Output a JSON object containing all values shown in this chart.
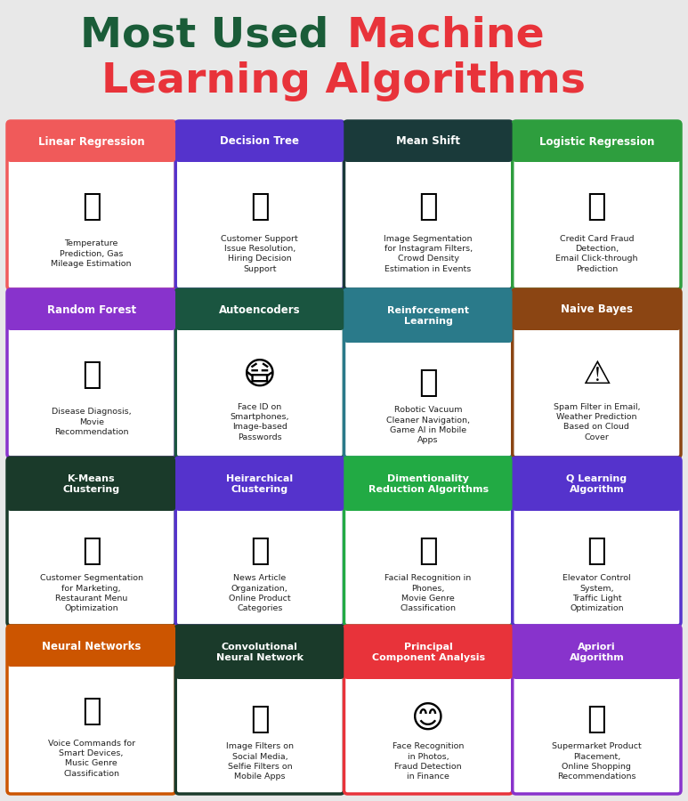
{
  "background_color": "#e8e8e8",
  "title_line1_part1": "Most Used ",
  "title_line1_part2": "Machine",
  "title_line2": "Learning Algorithms",
  "title_color_green": "#1a5c38",
  "title_color_red": "#e8333a",
  "cards": [
    {
      "title": "Linear Regression",
      "title_lines": 1,
      "title_bg": "#f05a5a",
      "border_color": "#f05a5a",
      "text": "Temperature\nPrediction, Gas\nMileage Estimation",
      "row": 0,
      "col": 0
    },
    {
      "title": "Decision Tree",
      "title_lines": 1,
      "title_bg": "#5533cc",
      "border_color": "#5533cc",
      "text": "Customer Support\nIssue Resolution,\nHiring Decision\nSupport",
      "row": 0,
      "col": 1
    },
    {
      "title": "Mean Shift",
      "title_lines": 1,
      "title_bg": "#1a3a3a",
      "border_color": "#1a3a3a",
      "text": "Image Segmentation\nfor Instagram Filters,\nCrowd Density\nEstimation in Events",
      "row": 0,
      "col": 2
    },
    {
      "title": "Logistic Regression",
      "title_lines": 1,
      "title_bg": "#2e9e3e",
      "border_color": "#2e9e3e",
      "text": "Credit Card Fraud\nDetection,\nEmail Click-through\nPrediction",
      "row": 0,
      "col": 3
    },
    {
      "title": "Random Forest",
      "title_lines": 1,
      "title_bg": "#8833cc",
      "border_color": "#8833cc",
      "text": "Disease Diagnosis,\nMovie\nRecommendation",
      "row": 1,
      "col": 0
    },
    {
      "title": "Autoencoders",
      "title_lines": 1,
      "title_bg": "#1a5540",
      "border_color": "#1a5540",
      "text": "Face ID on\nSmartphones,\nImage-based\nPasswords",
      "row": 1,
      "col": 1
    },
    {
      "title": "Reinforcement\nLearning",
      "title_lines": 2,
      "title_bg": "#2a7a8a",
      "border_color": "#2a7a8a",
      "text": "Robotic Vacuum\nCleaner Navigation,\nGame AI in Mobile\nApps",
      "row": 1,
      "col": 2
    },
    {
      "title": "Naive Bayes",
      "title_lines": 1,
      "title_bg": "#8b4513",
      "border_color": "#8b4513",
      "text": "Spam Filter in Email,\nWeather Prediction\nBased on Cloud\nCover",
      "row": 1,
      "col": 3
    },
    {
      "title": "K-Means\nClustering",
      "title_lines": 2,
      "title_bg": "#1a3a2a",
      "border_color": "#1a3a2a",
      "text": "Customer Segmentation\nfor Marketing,\nRestaurant Menu\nOptimization",
      "row": 2,
      "col": 0
    },
    {
      "title": "Heirarchical\nClustering",
      "title_lines": 2,
      "title_bg": "#5533cc",
      "border_color": "#5533cc",
      "text": "News Article\nOrganization,\nOnline Product\nCategories",
      "row": 2,
      "col": 1
    },
    {
      "title": "Dimentionality\nReduction Algorithms",
      "title_lines": 2,
      "title_bg": "#22aa44",
      "border_color": "#22aa44",
      "text": "Facial Recognition in\nPhones,\nMovie Genre\nClassification",
      "row": 2,
      "col": 2
    },
    {
      "title": "Q Learning\nAlgorithm",
      "title_lines": 2,
      "title_bg": "#5533cc",
      "border_color": "#5533cc",
      "text": "Elevator Control\nSystem,\nTraffic Light\nOptimization",
      "row": 2,
      "col": 3
    },
    {
      "title": "Neural Networks",
      "title_lines": 1,
      "title_bg": "#cc5500",
      "border_color": "#cc5500",
      "text": "Voice Commands for\nSmart Devices,\nMusic Genre\nClassification",
      "row": 3,
      "col": 0
    },
    {
      "title": "Convolutional\nNeural Network",
      "title_lines": 2,
      "title_bg": "#1a3a2a",
      "border_color": "#1a3a2a",
      "text": "Image Filters on\nSocial Media,\nSelfie Filters on\nMobile Apps",
      "row": 3,
      "col": 1
    },
    {
      "title": "Principal\nComponent Analysis",
      "title_lines": 2,
      "title_bg": "#e8333a",
      "border_color": "#e8333a",
      "text": "Face Recognition\nin Photos,\nFraud Detection\nin Finance",
      "row": 3,
      "col": 2
    },
    {
      "title": "Apriori\nAlgorithm",
      "title_lines": 2,
      "title_bg": "#8833cc",
      "border_color": "#8833cc",
      "text": "Supermarket Product\nPlacement,\nOnline Shopping\nRecommendations",
      "row": 3,
      "col": 3
    }
  ]
}
